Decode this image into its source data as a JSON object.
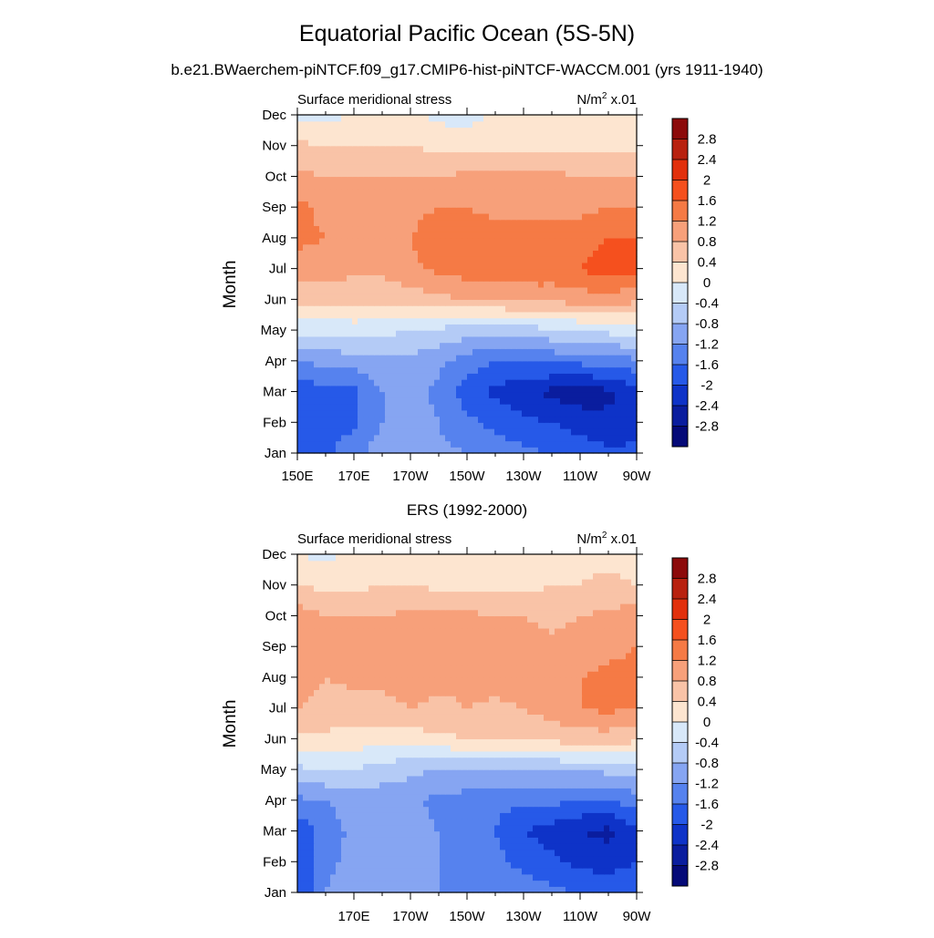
{
  "figure": {
    "title": "Equatorial Pacific Ocean (5S-5N)",
    "subtitle": "b.e21.BWaerchem-piNTCF.f09_g17.CMIP6-hist-piNTCF-WACCM.001 (yrs 1911-1940)",
    "middle_title": "ERS (1992-2000)"
  },
  "colorbar": {
    "levels": [
      "2.8",
      "2.4",
      "2",
      "1.6",
      "1.2",
      "0.8",
      "0.4",
      "0",
      "-0.4",
      "-0.8",
      "-1.2",
      "-1.6",
      "-2",
      "-2.4",
      "-2.8"
    ],
    "colors": [
      "#8c0a0a",
      "#b8210f",
      "#e2300c",
      "#f5501e",
      "#f57a45",
      "#f7a07a",
      "#f9c3a7",
      "#fde5d0",
      "#d8e8f9",
      "#b4cbf6",
      "#86a5f2",
      "#5682ee",
      "#2659e8",
      "#0e33c8",
      "#0a1d9e",
      "#050a78"
    ]
  },
  "chart_data": [
    {
      "type": "heatmap",
      "title_left": "Surface meridional stress",
      "units": "N/m2 x.01",
      "units_main": "N/m",
      "units_sup": "2",
      "units_tail": " x.01",
      "ylabel": "Month",
      "y_ticklabels": [
        "Jan",
        "Feb",
        "Mar",
        "Apr",
        "May",
        "Jun",
        "Jul",
        "Aug",
        "Sep",
        "Oct",
        "Nov",
        "Dec"
      ],
      "x_ticklabels": [
        "150E",
        "170E",
        "170W",
        "150W",
        "130W",
        "110W",
        "90W"
      ],
      "x": [
        150,
        160,
        170,
        180,
        190,
        200,
        210,
        220,
        230,
        240,
        250,
        260,
        270
      ],
      "z": [
        [
          -1.9,
          -1.7,
          -1.3,
          -1.0,
          -1.0,
          -1.1,
          -1.2,
          -1.4,
          -1.5,
          -1.6,
          -1.7,
          -1.9,
          -1.9
        ],
        [
          -2.0,
          -1.8,
          -1.7,
          -1.2,
          -1.0,
          -1.2,
          -1.5,
          -1.7,
          -1.9,
          -2.0,
          -2.2,
          -2.3,
          -2.2
        ],
        [
          -1.9,
          -1.7,
          -1.7,
          -1.2,
          -1.0,
          -1.3,
          -1.8,
          -2.1,
          -2.3,
          -2.5,
          -2.6,
          -2.5,
          -2.2
        ],
        [
          -1.2,
          -1.1,
          -1.0,
          -0.9,
          -0.9,
          -1.1,
          -1.4,
          -1.6,
          -1.6,
          -1.5,
          -1.5,
          -1.4,
          -1.3
        ],
        [
          -0.3,
          -0.3,
          -0.2,
          -0.3,
          -0.4,
          -0.5,
          -0.6,
          -0.6,
          -0.6,
          -0.5,
          -0.4,
          -0.3,
          -0.2
        ],
        [
          0.6,
          0.5,
          0.5,
          0.5,
          0.6,
          0.7,
          0.8,
          0.8,
          0.9,
          0.9,
          1.0,
          1.0,
          0.9
        ],
        [
          1.0,
          1.0,
          0.9,
          0.9,
          1.1,
          1.3,
          1.4,
          1.4,
          1.5,
          1.5,
          1.6,
          1.8,
          1.7
        ],
        [
          1.3,
          1.2,
          1.1,
          1.0,
          1.2,
          1.4,
          1.4,
          1.4,
          1.4,
          1.3,
          1.4,
          1.6,
          1.6
        ],
        [
          1.3,
          1.1,
          1.0,
          1.0,
          1.1,
          1.2,
          1.2,
          1.1,
          1.1,
          1.1,
          1.1,
          1.2,
          1.2
        ],
        [
          0.9,
          0.8,
          0.8,
          0.8,
          0.8,
          0.8,
          0.9,
          0.9,
          0.9,
          0.9,
          0.8,
          0.8,
          0.8
        ],
        [
          0.5,
          0.4,
          0.4,
          0.4,
          0.4,
          0.3,
          0.3,
          0.3,
          0.3,
          0.3,
          0.3,
          0.3,
          0.3
        ],
        [
          -0.1,
          -0.1,
          0.0,
          0.1,
          0.1,
          -0.1,
          -0.2,
          0.1,
          0.2,
          0.2,
          0.2,
          0.2,
          0.1
        ]
      ]
    },
    {
      "type": "heatmap",
      "title_left": "Surface meridional stress",
      "units": "N/m2 x.01",
      "units_main": "N/m",
      "units_sup": "2",
      "units_tail": " x.01",
      "ylabel": "Month",
      "y_ticklabels": [
        "Jan",
        "Feb",
        "Mar",
        "Apr",
        "May",
        "Jun",
        "Jul",
        "Aug",
        "Sep",
        "Oct",
        "Nov",
        "Dec"
      ],
      "x_ticklabels": [
        "170E",
        "170W",
        "150W",
        "130W",
        "110W",
        "90W"
      ],
      "x": [
        150,
        160,
        170,
        180,
        190,
        200,
        210,
        220,
        230,
        240,
        250,
        260,
        270
      ],
      "z": [
        [
          -2.0,
          -1.2,
          -0.8,
          -1.0,
          -1.1,
          -1.2,
          -1.2,
          -1.3,
          -1.4,
          -1.5,
          -1.6,
          -1.7,
          -1.6
        ],
        [
          -1.9,
          -1.4,
          -1.0,
          -1.1,
          -1.2,
          -1.2,
          -1.3,
          -1.5,
          -1.7,
          -1.9,
          -2.1,
          -2.2,
          -2.0
        ],
        [
          -1.9,
          -1.4,
          -1.1,
          -1.0,
          -1.1,
          -1.2,
          -1.3,
          -1.6,
          -2.0,
          -2.2,
          -2.4,
          -2.5,
          -2.1
        ],
        [
          -1.3,
          -1.2,
          -1.0,
          -1.0,
          -1.1,
          -1.3,
          -1.4,
          -1.5,
          -1.5,
          -1.5,
          -1.6,
          -1.6,
          -1.4
        ],
        [
          -0.5,
          -0.4,
          -0.4,
          -0.6,
          -0.7,
          -0.8,
          -0.8,
          -0.8,
          -0.8,
          -0.8,
          -0.8,
          -0.7,
          -0.6
        ],
        [
          0.3,
          0.3,
          0.2,
          0.2,
          0.2,
          0.3,
          0.4,
          0.4,
          0.4,
          0.5,
          0.6,
          0.6,
          0.5
        ],
        [
          0.8,
          0.7,
          0.6,
          0.7,
          0.8,
          0.7,
          0.8,
          0.7,
          0.8,
          1.0,
          1.2,
          1.3,
          1.2
        ],
        [
          1.0,
          0.8,
          0.9,
          0.9,
          1.0,
          0.9,
          0.9,
          1.0,
          1.0,
          1.0,
          1.2,
          1.3,
          1.3
        ],
        [
          1.2,
          0.9,
          0.9,
          0.9,
          1.0,
          0.9,
          0.9,
          0.9,
          0.9,
          0.9,
          1.0,
          1.1,
          1.2
        ],
        [
          1.0,
          0.8,
          0.8,
          0.8,
          0.9,
          0.9,
          0.9,
          0.8,
          0.8,
          0.7,
          0.8,
          0.9,
          1.0
        ],
        [
          0.4,
          0.3,
          0.3,
          0.4,
          0.4,
          0.3,
          0.3,
          0.3,
          0.3,
          0.4,
          0.4,
          0.5,
          0.4
        ],
        [
          0.0,
          -0.1,
          0.1,
          0.2,
          0.1,
          0.0,
          0.1,
          0.2,
          0.3,
          0.3,
          0.3,
          0.3,
          0.2
        ]
      ]
    }
  ]
}
